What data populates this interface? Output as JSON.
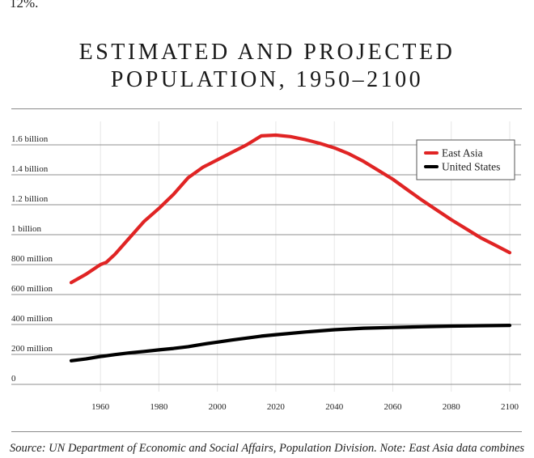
{
  "top_fragment": "12%.",
  "chart_data": {
    "type": "line",
    "title": "ESTIMATED AND PROJECTED POPULATION, 1950–2100",
    "title_lines": [
      "ESTIMATED AND PROJECTED",
      "POPULATION, 1950–2100"
    ],
    "xlabel": "",
    "ylabel": "",
    "xlim": [
      1950,
      2100
    ],
    "ylim": [
      0,
      1700000000
    ],
    "x_ticks": [
      1960,
      1980,
      2000,
      2020,
      2040,
      2060,
      2080,
      2100
    ],
    "y_ticks": [
      {
        "value": 0,
        "label": "0"
      },
      {
        "value": 200000000,
        "label": "200 million"
      },
      {
        "value": 400000000,
        "label": "400 million"
      },
      {
        "value": 600000000,
        "label": "600 million"
      },
      {
        "value": 800000000,
        "label": "800 million"
      },
      {
        "value": 1000000000,
        "label": "1 billion"
      },
      {
        "value": 1200000000,
        "label": "1.2 billion"
      },
      {
        "value": 1400000000,
        "label": "1.4 billion"
      },
      {
        "value": 1600000000,
        "label": "1.6 billion"
      }
    ],
    "grid": true,
    "legend_position": "top-right",
    "series": [
      {
        "name": "East Asia",
        "color": "#e02424",
        "x": [
          1950,
          1955,
          1960,
          1962,
          1965,
          1970,
          1975,
          1980,
          1985,
          1990,
          1995,
          2000,
          2005,
          2010,
          2015,
          2020,
          2025,
          2030,
          2035,
          2040,
          2045,
          2050,
          2055,
          2060,
          2065,
          2070,
          2075,
          2080,
          2085,
          2090,
          2095,
          2100
        ],
        "values": [
          680000000,
          735000000,
          800000000,
          815000000,
          870000000,
          980000000,
          1090000000,
          1175000000,
          1270000000,
          1380000000,
          1450000000,
          1500000000,
          1550000000,
          1600000000,
          1660000000,
          1665000000,
          1655000000,
          1635000000,
          1610000000,
          1580000000,
          1540000000,
          1490000000,
          1430000000,
          1370000000,
          1300000000,
          1230000000,
          1165000000,
          1100000000,
          1040000000,
          980000000,
          930000000,
          880000000
        ]
      },
      {
        "name": "United States",
        "color": "#000000",
        "x": [
          1950,
          1955,
          1960,
          1965,
          1970,
          1975,
          1980,
          1985,
          1990,
          1995,
          2000,
          2005,
          2010,
          2015,
          2020,
          2030,
          2040,
          2050,
          2060,
          2070,
          2080,
          2090,
          2100
        ],
        "values": [
          158000000,
          170000000,
          186000000,
          199000000,
          210000000,
          220000000,
          230000000,
          240000000,
          252000000,
          268000000,
          282000000,
          296000000,
          309000000,
          322000000,
          332000000,
          350000000,
          365000000,
          375000000,
          380000000,
          385000000,
          389000000,
          392000000,
          394000000
        ]
      }
    ]
  },
  "source_note": "Source: UN Department of Economic and Social Affairs, Population Division. Note: East Asia data combines"
}
